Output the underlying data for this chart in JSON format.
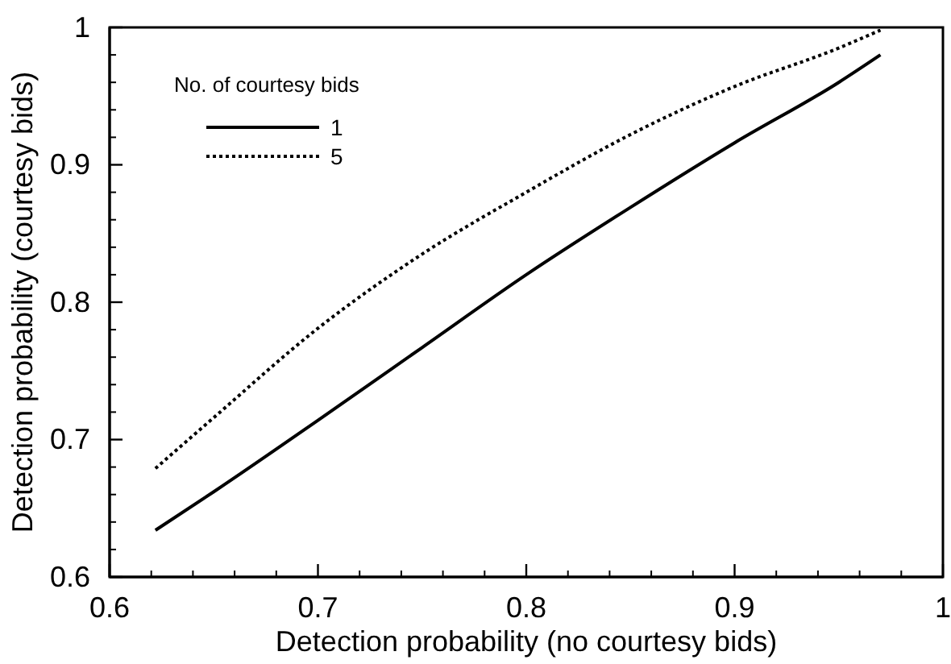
{
  "chart_data": {
    "type": "line",
    "xlabel": "Detection probability (no courtesy bids)",
    "ylabel": "Detection probability (courtesy bids)",
    "legend_title": "No. of courtesy bids",
    "x": [
      0.622,
      0.65,
      0.7,
      0.75,
      0.8,
      0.85,
      0.9,
      0.95,
      0.97
    ],
    "series": [
      {
        "name": "1",
        "color": "#000000",
        "line_style": "solid",
        "values": [
          0.634,
          0.662,
          0.714,
          0.767,
          0.82,
          0.869,
          0.916,
          0.96,
          0.98
        ]
      },
      {
        "name": "5",
        "color": "#000000",
        "line_style": "dotted",
        "values": [
          0.679,
          0.716,
          0.781,
          0.835,
          0.88,
          0.922,
          0.957,
          0.985,
          0.998
        ]
      }
    ],
    "xlim": [
      0.6,
      1
    ],
    "ylim": [
      0.6,
      1
    ],
    "xticks": [
      0.6,
      0.7,
      0.8,
      0.9,
      1
    ],
    "yticks": [
      0.6,
      0.7,
      0.8,
      0.9,
      1
    ],
    "grid": false,
    "legend": "top left",
    "marker": "none"
  }
}
